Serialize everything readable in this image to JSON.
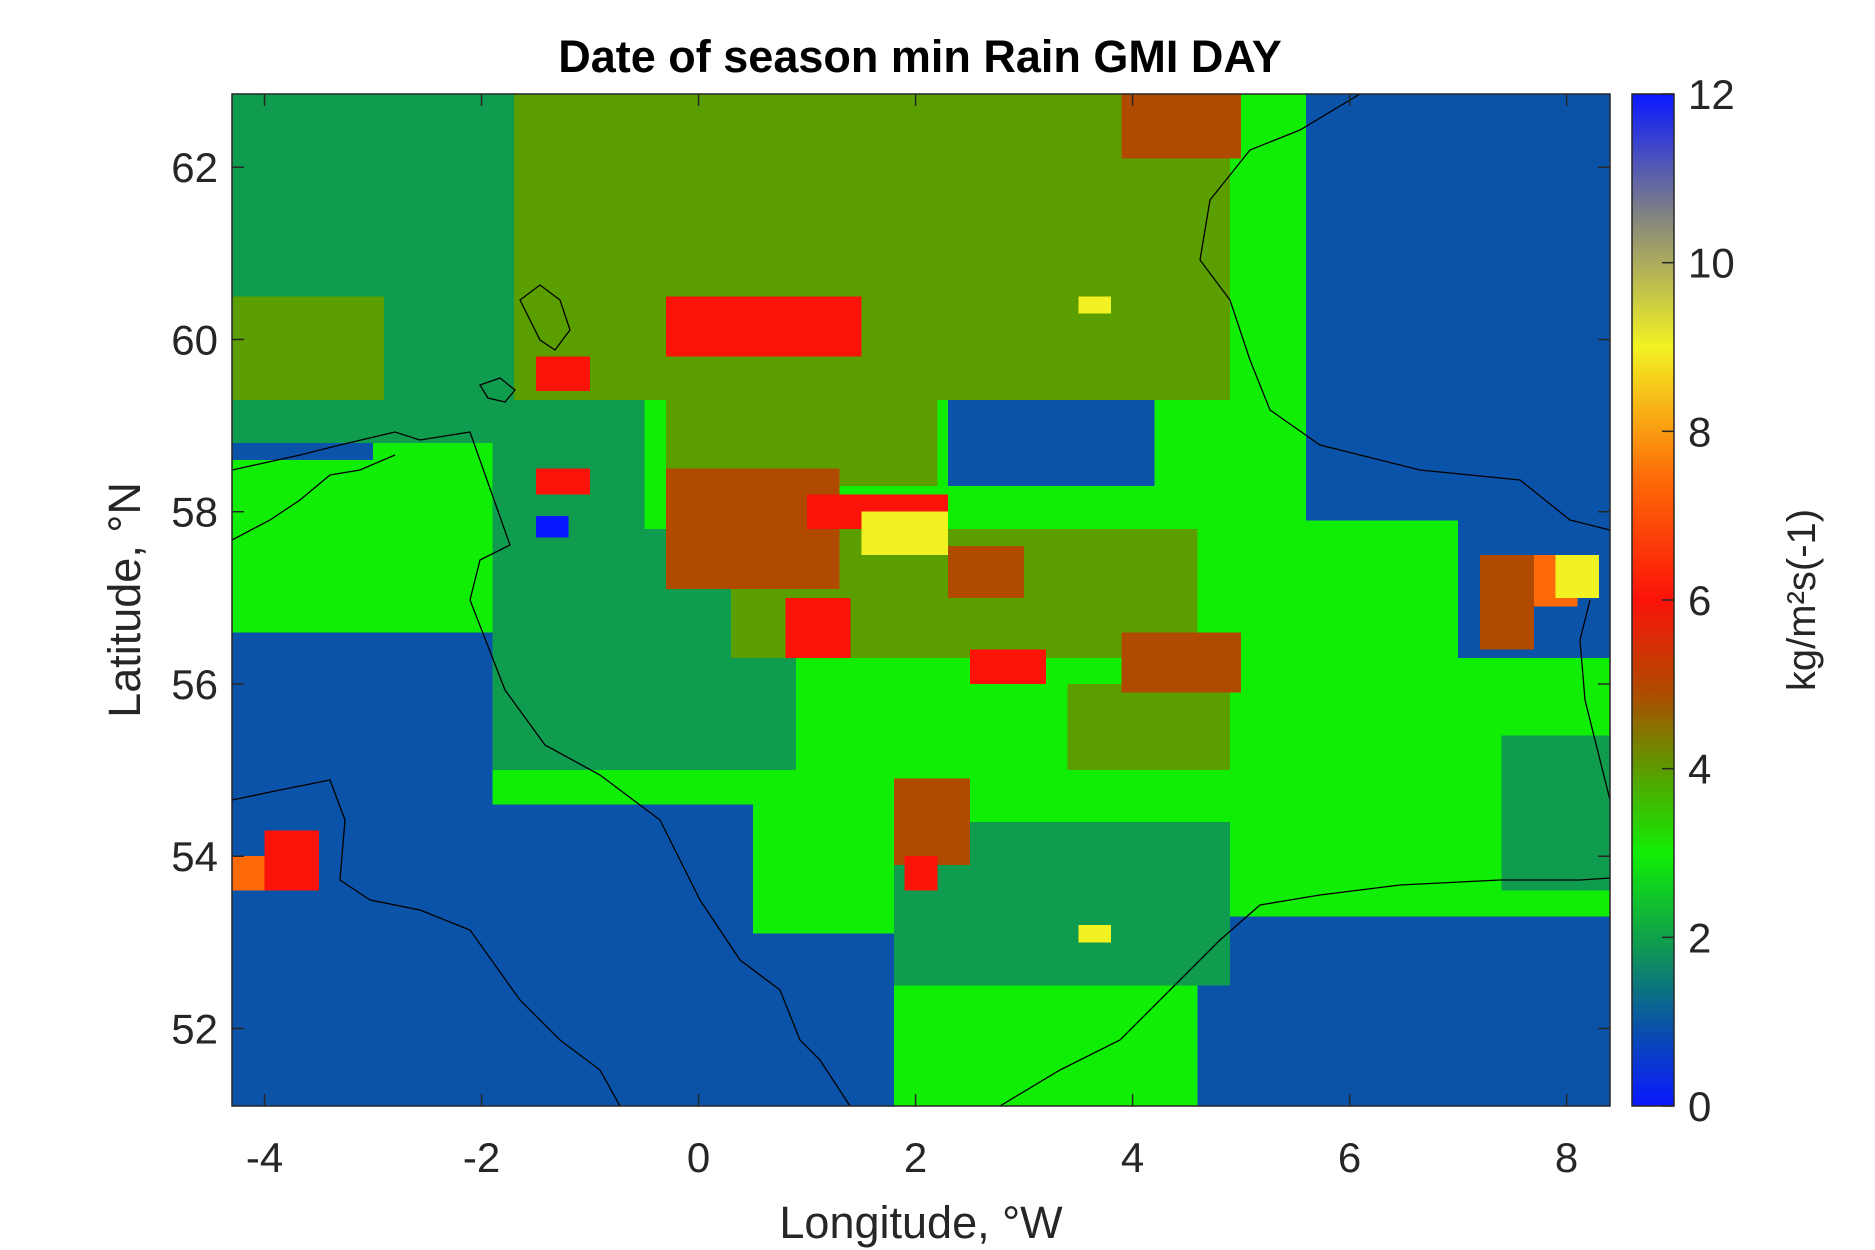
{
  "chart_data": {
    "type": "heatmap",
    "title": "Date of season min Rain GMI DAY",
    "xlabel": "Longitude, °W",
    "ylabel": "Latitude, °N",
    "colorbar_label": "kg/m²s(-1)",
    "xlim": [
      -4.3,
      8.4
    ],
    "ylim": [
      51.1,
      62.85
    ],
    "xticks": [
      -4,
      -2,
      0,
      2,
      4,
      6,
      8
    ],
    "yticks": [
      52,
      54,
      56,
      58,
      60,
      62
    ],
    "colorbar_ticks": [
      0,
      2,
      4,
      6,
      8,
      10,
      12
    ],
    "clim": [
      0,
      12
    ],
    "grid": false,
    "ocean_value": 1.2,
    "ocean_color": "#0a53a8",
    "colors": {
      "val_1": "#0a53a8",
      "val_2": "#0f9c4f",
      "val_3": "#11ee05",
      "val_4": "#5a9e00",
      "val_5": "#b04a00",
      "val_6": "#fb1309",
      "val_8": "#fe6a07",
      "val_9": "#f2f223",
      "val_0": "#0a18ff"
    },
    "regions": [
      {
        "value": 3,
        "lon": [
          -4.3,
          8.4
        ],
        "lat": [
          51.1,
          62.85
        ]
      },
      {
        "value": 1,
        "lon": [
          -4.3,
          -1.9
        ],
        "lat": [
          51.1,
          56.6
        ]
      },
      {
        "value": 1,
        "lon": [
          -1.9,
          0.5
        ],
        "lat": [
          51.1,
          54.6
        ]
      },
      {
        "value": 1,
        "lon": [
          0.5,
          1.8
        ],
        "lat": [
          51.1,
          53.1
        ]
      },
      {
        "value": 1,
        "lon": [
          4.6,
          8.4
        ],
        "lat": [
          51.1,
          53.3
        ]
      },
      {
        "value": 1,
        "lon": [
          5.6,
          8.4
        ],
        "lat": [
          57.9,
          62.85
        ]
      },
      {
        "value": 1,
        "lon": [
          7.0,
          8.4
        ],
        "lat": [
          56.3,
          58.0
        ]
      },
      {
        "value": 1,
        "lon": [
          2.3,
          4.2
        ],
        "lat": [
          58.3,
          59.8
        ]
      },
      {
        "value": 1,
        "lon": [
          -4.3,
          -3.0
        ],
        "lat": [
          58.6,
          59.5
        ]
      },
      {
        "value": 1,
        "lon": [
          -2.0,
          -0.9
        ],
        "lat": [
          59.7,
          60.6
        ]
      },
      {
        "value": 2,
        "lon": [
          -1.9,
          0.9
        ],
        "lat": [
          55.0,
          57.8
        ]
      },
      {
        "value": 2,
        "lon": [
          -4.3,
          -1.2
        ],
        "lat": [
          58.8,
          62.85
        ]
      },
      {
        "value": 2,
        "lon": [
          -1.9,
          -0.5
        ],
        "lat": [
          57.8,
          59.8
        ]
      },
      {
        "value": 2,
        "lon": [
          1.8,
          4.9
        ],
        "lat": [
          52.5,
          54.4
        ]
      },
      {
        "value": 2,
        "lon": [
          7.4,
          8.4
        ],
        "lat": [
          53.6,
          55.4
        ]
      },
      {
        "value": 4,
        "lon": [
          -1.7,
          4.9
        ],
        "lat": [
          59.3,
          62.85
        ]
      },
      {
        "value": 4,
        "lon": [
          -0.3,
          2.2
        ],
        "lat": [
          58.3,
          59.3
        ]
      },
      {
        "value": 4,
        "lon": [
          -4.3,
          -2.9
        ],
        "lat": [
          59.3,
          60.5
        ]
      },
      {
        "value": 4,
        "lon": [
          0.3,
          4.6
        ],
        "lat": [
          56.3,
          57.8
        ]
      },
      {
        "value": 4,
        "lon": [
          3.4,
          4.9
        ],
        "lat": [
          55.0,
          56.0
        ]
      },
      {
        "value": 5,
        "lon": [
          -0.3,
          1.3
        ],
        "lat": [
          57.1,
          58.5
        ]
      },
      {
        "value": 5,
        "lon": [
          3.9,
          5.0
        ],
        "lat": [
          55.9,
          56.6
        ]
      },
      {
        "value": 5,
        "lon": [
          7.2,
          7.7
        ],
        "lat": [
          56.4,
          57.5
        ]
      },
      {
        "value": 5,
        "lon": [
          1.8,
          2.5
        ],
        "lat": [
          53.9,
          54.9
        ]
      },
      {
        "value": 5,
        "lon": [
          2.3,
          3.0
        ],
        "lat": [
          57.0,
          57.6
        ]
      },
      {
        "value": 5,
        "lon": [
          3.9,
          5.0
        ],
        "lat": [
          62.1,
          62.85
        ]
      },
      {
        "value": 6,
        "lon": [
          -0.3,
          1.5
        ],
        "lat": [
          59.8,
          60.5
        ]
      },
      {
        "value": 6,
        "lon": [
          -1.5,
          -1.0
        ],
        "lat": [
          59.4,
          59.8
        ]
      },
      {
        "value": 6,
        "lon": [
          -1.5,
          -1.0
        ],
        "lat": [
          58.2,
          58.5
        ]
      },
      {
        "value": 6,
        "lon": [
          1.0,
          2.3
        ],
        "lat": [
          57.8,
          58.2
        ]
      },
      {
        "value": 6,
        "lon": [
          0.8,
          1.4
        ],
        "lat": [
          56.3,
          57.0
        ]
      },
      {
        "value": 6,
        "lon": [
          2.5,
          3.2
        ],
        "lat": [
          56.0,
          56.4
        ]
      },
      {
        "value": 6,
        "lon": [
          -4.0,
          -3.5
        ],
        "lat": [
          53.6,
          54.3
        ]
      },
      {
        "value": 6,
        "lon": [
          1.9,
          2.2
        ],
        "lat": [
          53.6,
          54.0
        ]
      },
      {
        "value": 8,
        "lon": [
          7.7,
          8.1
        ],
        "lat": [
          56.9,
          57.5
        ]
      },
      {
        "value": 8,
        "lon": [
          -4.3,
          -4.0
        ],
        "lat": [
          53.6,
          54.0
        ]
      },
      {
        "value": 9,
        "lon": [
          1.5,
          2.3
        ],
        "lat": [
          57.5,
          58.0
        ]
      },
      {
        "value": 9,
        "lon": [
          7.9,
          8.3
        ],
        "lat": [
          57.0,
          57.5
        ]
      },
      {
        "value": 9,
        "lon": [
          3.5,
          3.8
        ],
        "lat": [
          60.3,
          60.5
        ]
      },
      {
        "value": 9,
        "lon": [
          3.5,
          3.8
        ],
        "lat": [
          53.0,
          53.2
        ]
      },
      {
        "value": 0,
        "lon": [
          -1.5,
          -1.2
        ],
        "lat": [
          57.7,
          57.95
        ]
      }
    ]
  }
}
